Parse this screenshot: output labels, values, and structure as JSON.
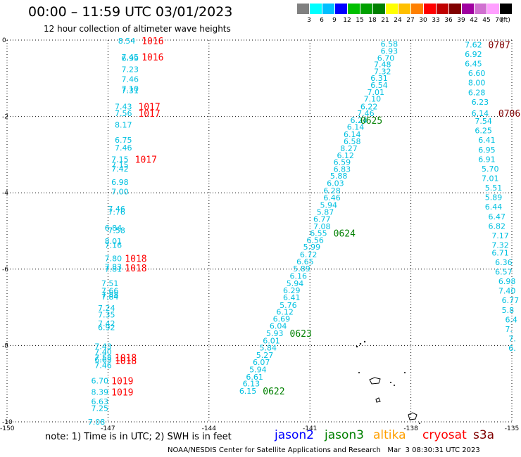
{
  "header": {
    "title": "00:00 – 11:59 UTC 03/01/2023",
    "subtitle": "12 hour collection of altimeter wave heights"
  },
  "legend": {
    "unit": "(ft)",
    "bins": [
      {
        "label": "3",
        "color": "#808080"
      },
      {
        "label": "6",
        "color": "#00ffff"
      },
      {
        "label": "9",
        "color": "#00bfff"
      },
      {
        "label": "12",
        "color": "#0000ff"
      },
      {
        "label": "15",
        "color": "#00c000"
      },
      {
        "label": "18",
        "color": "#00a000"
      },
      {
        "label": "21",
        "color": "#008000"
      },
      {
        "label": "24",
        "color": "#ffff00"
      },
      {
        "label": "27",
        "color": "#ffc000"
      },
      {
        "label": "30",
        "color": "#ff8000"
      },
      {
        "label": "33",
        "color": "#ff0000"
      },
      {
        "label": "36",
        "color": "#c00000"
      },
      {
        "label": "39",
        "color": "#800000"
      },
      {
        "label": "42",
        "color": "#a000a0"
      },
      {
        "label": "45",
        "color": "#d070d0"
      },
      {
        "label": "70",
        "color": "#ffa0ff"
      },
      {
        "label": "",
        "color": "#000000"
      }
    ]
  },
  "map": {
    "lon_range": [
      -150,
      -135
    ],
    "lat_range": [
      -10,
      0
    ],
    "lat_ticks": [
      "0",
      "-2",
      "-4",
      "-6",
      "-8",
      "-10"
    ],
    "lon_ticks": [
      "-150",
      "-147",
      "-144",
      "-141",
      "-138",
      "-135"
    ],
    "wave_color": "#00c0e0",
    "time_color_red": "#ff0000",
    "time_color_green": "#008000",
    "time_color_maroon": "#800000"
  },
  "tracks": [
    {
      "name": "track-left",
      "values": [
        {
          "t": "8.54",
          "lon": -146.7,
          "lat": 0.0
        },
        {
          "t": "7.45",
          "lon": -146.6,
          "lat": -0.42
        },
        {
          "t": "6.99",
          "lon": -146.6,
          "lat": -0.46
        },
        {
          "t": "7.23",
          "lon": -146.6,
          "lat": -0.75
        },
        {
          "t": "7.46",
          "lon": -146.6,
          "lat": -1.0
        },
        {
          "t": "7.10",
          "lon": -146.6,
          "lat": -1.25
        },
        {
          "t": "7.31",
          "lon": -146.6,
          "lat": -1.3
        },
        {
          "t": "7.43",
          "lon": -146.8,
          "lat": -1.72
        },
        {
          "t": "7.56",
          "lon": -146.8,
          "lat": -1.9
        },
        {
          "t": "8.17",
          "lon": -146.8,
          "lat": -2.2
        },
        {
          "t": "6.75",
          "lon": -146.8,
          "lat": -2.6
        },
        {
          "t": "7.46",
          "lon": -146.8,
          "lat": -2.8
        },
        {
          "t": "7.15",
          "lon": -146.9,
          "lat": -3.1
        },
        {
          "t": "7.15",
          "lon": -146.9,
          "lat": -3.25
        },
        {
          "t": "7.42",
          "lon": -146.9,
          "lat": -3.35
        },
        {
          "t": "6.98",
          "lon": -146.9,
          "lat": -3.7
        },
        {
          "t": "7.00",
          "lon": -146.9,
          "lat": -3.95
        },
        {
          "t": "7.46",
          "lon": -147.0,
          "lat": -4.4
        },
        {
          "t": "7.76",
          "lon": -147.0,
          "lat": -4.48
        },
        {
          "t": "6.84",
          "lon": -147.1,
          "lat": -4.9
        },
        {
          "t": "7.58",
          "lon": -147.0,
          "lat": -4.96
        },
        {
          "t": "8.01",
          "lon": -147.1,
          "lat": -5.25
        },
        {
          "t": "7.16",
          "lon": -147.1,
          "lat": -5.35
        },
        {
          "t": "7.80",
          "lon": -147.1,
          "lat": -5.7
        },
        {
          "t": "7.83",
          "lon": -147.1,
          "lat": -5.92
        },
        {
          "t": "7.81",
          "lon": -147.1,
          "lat": -5.98
        },
        {
          "t": "7.51",
          "lon": -147.2,
          "lat": -6.35
        },
        {
          "t": "7.66",
          "lon": -147.2,
          "lat": -6.55
        },
        {
          "t": "7.88",
          "lon": -147.2,
          "lat": -6.65
        },
        {
          "t": "7.84",
          "lon": -147.2,
          "lat": -6.7
        },
        {
          "t": "7.24",
          "lon": -147.3,
          "lat": -7.0
        },
        {
          "t": "7.35",
          "lon": -147.3,
          "lat": -7.17
        },
        {
          "t": "7.42",
          "lon": -147.3,
          "lat": -7.4
        },
        {
          "t": "6.92",
          "lon": -147.3,
          "lat": -7.5
        },
        {
          "t": "7.43",
          "lon": -147.4,
          "lat": -8.0
        },
        {
          "t": "7.40",
          "lon": -147.4,
          "lat": -8.15
        },
        {
          "t": "7.58",
          "lon": -147.4,
          "lat": -8.3
        },
        {
          "t": "6.63",
          "lon": -147.4,
          "lat": -8.35
        },
        {
          "t": "7.46",
          "lon": -147.4,
          "lat": -8.5
        },
        {
          "t": "6.70",
          "lon": -147.5,
          "lat": -8.9
        },
        {
          "t": "8.39",
          "lon": -147.5,
          "lat": -9.2
        },
        {
          "t": "6.63",
          "lon": -147.5,
          "lat": -9.45
        },
        {
          "t": "7.25",
          "lon": -147.5,
          "lat": -9.62
        },
        {
          "t": "7.08",
          "lon": -147.6,
          "lat": -9.98
        }
      ]
    },
    {
      "name": "track-middle",
      "values": [
        {
          "t": "6.58",
          "lon": -138.9,
          "lat": -0.08
        },
        {
          "t": "6.93",
          "lon": -138.9,
          "lat": -0.27
        },
        {
          "t": "6.70",
          "lon": -139.0,
          "lat": -0.45
        },
        {
          "t": "7.48",
          "lon": -139.1,
          "lat": -0.62
        },
        {
          "t": "7.32",
          "lon": -139.1,
          "lat": -0.8
        },
        {
          "t": "6.31",
          "lon": -139.2,
          "lat": -0.98
        },
        {
          "t": "6.54",
          "lon": -139.2,
          "lat": -1.16
        },
        {
          "t": "7.01",
          "lon": -139.3,
          "lat": -1.34
        },
        {
          "t": "7.10",
          "lon": -139.4,
          "lat": -1.52
        },
        {
          "t": "6.22",
          "lon": -139.5,
          "lat": -1.72
        },
        {
          "t": "7.46",
          "lon": -139.6,
          "lat": -1.9
        },
        {
          "t": "6.24",
          "lon": -139.8,
          "lat": -2.08
        },
        {
          "t": "6.14",
          "lon": -139.9,
          "lat": -2.26
        },
        {
          "t": "6.14",
          "lon": -140.0,
          "lat": -2.45
        },
        {
          "t": "6.58",
          "lon": -140.0,
          "lat": -2.63
        },
        {
          "t": "8.27",
          "lon": -140.1,
          "lat": -2.82
        },
        {
          "t": "6.12",
          "lon": -140.2,
          "lat": -3.0
        },
        {
          "t": "6.59",
          "lon": -140.3,
          "lat": -3.18
        },
        {
          "t": "6.83",
          "lon": -140.3,
          "lat": -3.36
        },
        {
          "t": "5.88",
          "lon": -140.4,
          "lat": -3.54
        },
        {
          "t": "6.03",
          "lon": -140.5,
          "lat": -3.73
        },
        {
          "t": "6.28",
          "lon": -140.6,
          "lat": -3.92
        },
        {
          "t": "6.46",
          "lon": -140.6,
          "lat": -4.11
        },
        {
          "t": "5.94",
          "lon": -140.7,
          "lat": -4.3
        },
        {
          "t": "5.87",
          "lon": -140.8,
          "lat": -4.48
        },
        {
          "t": "6.77",
          "lon": -140.9,
          "lat": -4.67
        },
        {
          "t": "7.08",
          "lon": -140.9,
          "lat": -4.86
        },
        {
          "t": "6.55",
          "lon": -141.0,
          "lat": -5.04
        },
        {
          "t": "6.56",
          "lon": -141.1,
          "lat": -5.22
        },
        {
          "t": "5.99",
          "lon": -141.2,
          "lat": -5.4
        },
        {
          "t": "6.72",
          "lon": -141.3,
          "lat": -5.6
        },
        {
          "t": "6.65",
          "lon": -141.4,
          "lat": -5.78
        },
        {
          "t": "5.89",
          "lon": -141.5,
          "lat": -5.97
        },
        {
          "t": "6.16",
          "lon": -141.6,
          "lat": -6.16
        },
        {
          "t": "5.94",
          "lon": -141.7,
          "lat": -6.35
        },
        {
          "t": "6.29",
          "lon": -141.8,
          "lat": -6.54
        },
        {
          "t": "6.41",
          "lon": -141.8,
          "lat": -6.72
        },
        {
          "t": "5.76",
          "lon": -141.9,
          "lat": -6.92
        },
        {
          "t": "6.12",
          "lon": -142.0,
          "lat": -7.1
        },
        {
          "t": "6.69",
          "lon": -142.1,
          "lat": -7.28
        },
        {
          "t": "6.04",
          "lon": -142.2,
          "lat": -7.47
        },
        {
          "t": "5.93",
          "lon": -142.3,
          "lat": -7.66
        },
        {
          "t": "6.01",
          "lon": -142.4,
          "lat": -7.85
        },
        {
          "t": "5.84",
          "lon": -142.5,
          "lat": -8.04
        },
        {
          "t": "5.27",
          "lon": -142.6,
          "lat": -8.23
        },
        {
          "t": "6.07",
          "lon": -142.7,
          "lat": -8.42
        },
        {
          "t": "5.94",
          "lon": -142.8,
          "lat": -8.61
        },
        {
          "t": "6.61",
          "lon": -142.9,
          "lat": -8.8
        },
        {
          "t": "6.13",
          "lon": -143.0,
          "lat": -8.98
        },
        {
          "t": "6.15",
          "lon": -143.1,
          "lat": -9.17
        }
      ]
    },
    {
      "name": "track-right",
      "values": [
        {
          "t": "7.62",
          "lon": -136.4,
          "lat": -0.1
        },
        {
          "t": "6.92",
          "lon": -136.4,
          "lat": -0.35
        },
        {
          "t": "6.45",
          "lon": -136.4,
          "lat": -0.6
        },
        {
          "t": "6.60",
          "lon": -136.3,
          "lat": -0.85
        },
        {
          "t": "8.00",
          "lon": -136.3,
          "lat": -1.1
        },
        {
          "t": "6.28",
          "lon": -136.3,
          "lat": -1.35
        },
        {
          "t": "6.23",
          "lon": -136.2,
          "lat": -1.6
        },
        {
          "t": "6.14",
          "lon": -136.2,
          "lat": -1.9
        },
        {
          "t": "7.54",
          "lon": -136.1,
          "lat": -2.1
        },
        {
          "t": "6.25",
          "lon": -136.1,
          "lat": -2.35
        },
        {
          "t": "6.41",
          "lon": -136.0,
          "lat": -2.6
        },
        {
          "t": "6.95",
          "lon": -136.0,
          "lat": -2.85
        },
        {
          "t": "6.91",
          "lon": -136.0,
          "lat": -3.1
        },
        {
          "t": "5.70",
          "lon": -135.9,
          "lat": -3.35
        },
        {
          "t": "7.01",
          "lon": -135.9,
          "lat": -3.6
        },
        {
          "t": "5.51",
          "lon": -135.8,
          "lat": -3.85
        },
        {
          "t": "5.89",
          "lon": -135.8,
          "lat": -4.1
        },
        {
          "t": "6.44",
          "lon": -135.8,
          "lat": -4.35
        },
        {
          "t": "6.47",
          "lon": -135.7,
          "lat": -4.6
        },
        {
          "t": "6.82",
          "lon": -135.7,
          "lat": -4.85
        },
        {
          "t": "7.17",
          "lon": -135.6,
          "lat": -5.1
        },
        {
          "t": "7.32",
          "lon": -135.6,
          "lat": -5.35
        },
        {
          "t": "6.71",
          "lon": -135.6,
          "lat": -5.55
        },
        {
          "t": "6.36",
          "lon": -135.5,
          "lat": -5.8
        },
        {
          "t": "6.57",
          "lon": -135.5,
          "lat": -6.05
        },
        {
          "t": "6.98",
          "lon": -135.4,
          "lat": -6.3
        },
        {
          "t": "7.40",
          "lon": -135.4,
          "lat": -6.55
        },
        {
          "t": "6.77",
          "lon": -135.3,
          "lat": -6.8
        },
        {
          "t": "5.8",
          "lon": -135.3,
          "lat": -7.05
        },
        {
          "t": "6.4",
          "lon": -135.2,
          "lat": -7.3
        },
        {
          "t": "7.",
          "lon": -135.2,
          "lat": -7.55
        },
        {
          "t": "7.",
          "lon": -135.1,
          "lat": -7.8
        },
        {
          "t": "6.",
          "lon": -135.1,
          "lat": -8.05
        }
      ]
    }
  ],
  "time_labels": [
    {
      "t": "1016",
      "lon": -146.0,
      "lat": 0.0,
      "c": "red"
    },
    {
      "t": "1016",
      "lon": -146.0,
      "lat": -0.42,
      "c": "red"
    },
    {
      "t": "1017",
      "lon": -146.1,
      "lat": -1.72,
      "c": "red"
    },
    {
      "t": "1017",
      "lon": -146.1,
      "lat": -1.9,
      "c": "red"
    },
    {
      "t": "1017",
      "lon": -146.2,
      "lat": -3.1,
      "c": "red"
    },
    {
      "t": "1018",
      "lon": -146.5,
      "lat": -5.7,
      "c": "red"
    },
    {
      "t": "1018",
      "lon": -146.5,
      "lat": -5.95,
      "c": "red"
    },
    {
      "t": "1018",
      "lon": -146.8,
      "lat": -8.3,
      "c": "red"
    },
    {
      "t": "1018",
      "lon": -146.8,
      "lat": -8.38,
      "c": "red"
    },
    {
      "t": "1019",
      "lon": -146.9,
      "lat": -8.9,
      "c": "red"
    },
    {
      "t": "1019",
      "lon": -146.9,
      "lat": -9.2,
      "c": "red"
    },
    {
      "t": "0625",
      "lon": -139.5,
      "lat": -2.08,
      "c": "green"
    },
    {
      "t": "0624",
      "lon": -140.3,
      "lat": -5.04,
      "c": "green"
    },
    {
      "t": "0623",
      "lon": -141.6,
      "lat": -7.66,
      "c": "green"
    },
    {
      "t": "0622",
      "lon": -142.4,
      "lat": -9.17,
      "c": "green"
    },
    {
      "t": "0707",
      "lon": -135.7,
      "lat": -0.1,
      "c": "maroon"
    },
    {
      "t": "0706",
      "lon": -135.4,
      "lat": -1.9,
      "c": "maroon"
    }
  ],
  "note": "note: 1) Time is in UTC; 2) SWH is in feet",
  "satellites": [
    {
      "label": "jason2",
      "color": "#0000ff"
    },
    {
      "label": "jason3",
      "color": "#008000"
    },
    {
      "label": "altika",
      "color": "#ffa000"
    },
    {
      "label": "cryosat",
      "color": "#ff0000"
    },
    {
      "label": "s3a",
      "color": "#800000"
    }
  ],
  "footer": "NOAA/NESDIS Center for Satellite Applications and Research   Mar  3 08:30:31 UTC 2023"
}
